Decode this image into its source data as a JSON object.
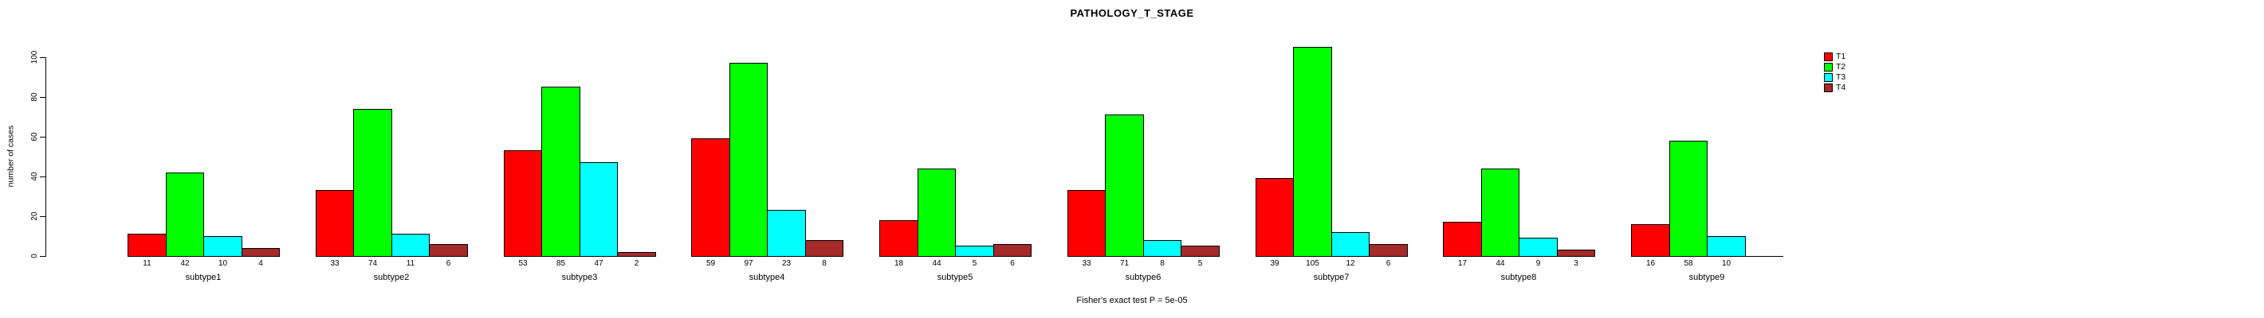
{
  "chart_data": {
    "type": "bar",
    "title": "PATHOLOGY_T_STAGE",
    "ylabel": "number of cases",
    "xlabel": "",
    "categories": [
      "subtype1",
      "subtype2",
      "subtype3",
      "subtype4",
      "subtype5",
      "subtype6",
      "subtype7",
      "subtype8",
      "subtype9"
    ],
    "series": [
      {
        "name": "T1",
        "color": "#FF0000",
        "values": [
          11,
          33,
          53,
          59,
          18,
          33,
          39,
          17,
          16
        ]
      },
      {
        "name": "T2",
        "color": "#00FF00",
        "values": [
          42,
          74,
          85,
          97,
          44,
          71,
          105,
          44,
          58
        ]
      },
      {
        "name": "T3",
        "color": "#00FFFF",
        "values": [
          10,
          11,
          47,
          23,
          5,
          8,
          12,
          9,
          10
        ]
      },
      {
        "name": "T4",
        "color": "#A52A2A",
        "values": [
          4,
          6,
          2,
          8,
          6,
          5,
          6,
          3,
          0
        ]
      }
    ],
    "yticks": [
      0,
      20,
      40,
      60,
      80,
      100
    ],
    "ylim": [
      0,
      100
    ],
    "grid": false,
    "legend_position": "topright",
    "bar_value_labels_shown": true,
    "annotation": "Fisher's exact test P = 5e-05"
  }
}
